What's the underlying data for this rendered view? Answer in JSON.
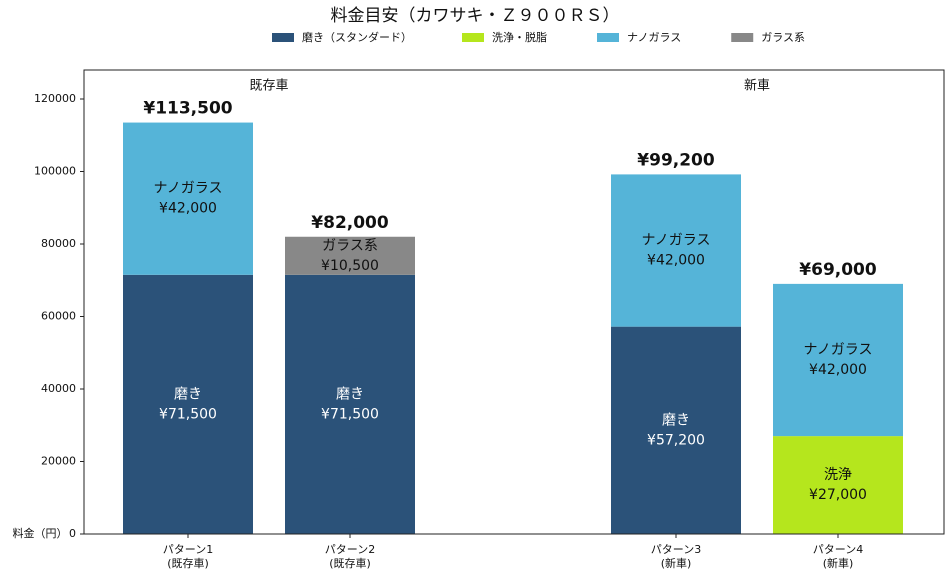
{
  "chart_data": {
    "type": "stacked_bar",
    "title": "料金目安（カワサキ・Ｚ９００ＲＳ）",
    "y_label": "料金（円）",
    "categories": [
      [
        "パターン1",
        "(既存車)"
      ],
      [
        "パターン2",
        "(既存車)"
      ],
      [
        "パターン3",
        "(新車)"
      ],
      [
        "パターン4",
        "(新車)"
      ]
    ],
    "groups": [
      "既存車",
      "新車"
    ],
    "series": [
      {
        "name": "磨き（スタンダード）",
        "label": "磨き",
        "color": "#2b5279",
        "text_color": "#ffffff",
        "values": [
          71500,
          71500,
          57200,
          null
        ],
        "value_labels": [
          "¥71,500",
          "¥71,500",
          "¥57,200",
          null
        ]
      },
      {
        "name": "洗浄・脱脂",
        "label": "洗浄",
        "color": "#b5e61d",
        "text_color": "#111111",
        "values": [
          null,
          null,
          null,
          27000
        ],
        "value_labels": [
          null,
          null,
          null,
          "¥27,000"
        ]
      },
      {
        "name": "ナノガラス",
        "label": "ナノガラス",
        "color": "#55b4d8",
        "text_color": "#111111",
        "values": [
          42000,
          null,
          42000,
          42000
        ],
        "value_labels": [
          "¥42,000",
          null,
          "¥42,000",
          "¥42,000"
        ]
      },
      {
        "name": "ガラス系",
        "label": "ガラス系",
        "color": "#888888",
        "text_color": "#111111",
        "values": [
          null,
          10500,
          null,
          null
        ],
        "value_labels": [
          null,
          "¥10,500",
          null,
          null
        ]
      }
    ],
    "totals": [
      113500,
      82000,
      99200,
      69000
    ],
    "total_labels": [
      "¥113,500",
      "¥82,000",
      "¥99,200",
      "¥69,000"
    ],
    "ylim": [
      0,
      128000
    ],
    "yticks": [
      0,
      20000,
      40000,
      60000,
      80000,
      100000,
      120000
    ]
  }
}
